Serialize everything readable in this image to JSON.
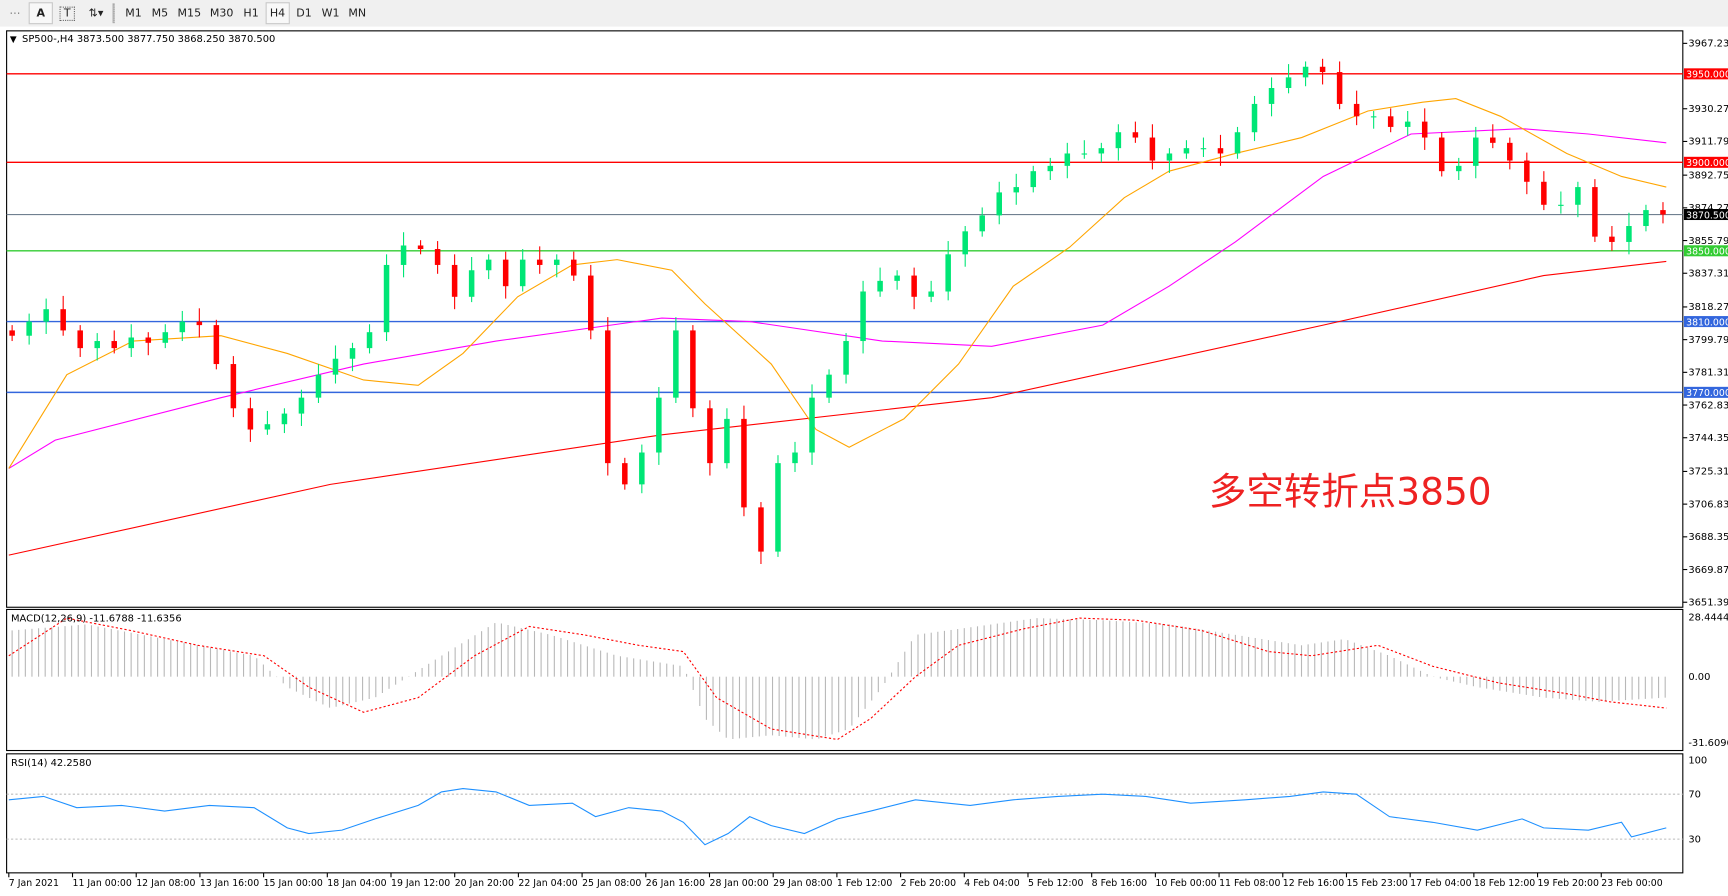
{
  "toolbar": {
    "tools": [
      "grid-icon",
      "A",
      "T",
      "arrows-icon"
    ],
    "timeframes": [
      "M1",
      "M5",
      "M15",
      "M30",
      "H1",
      "H4",
      "D1",
      "W1",
      "MN"
    ],
    "selected": "H4"
  },
  "chart": {
    "header": "SP500-,H4  3873.500 3877.750 3868.250 3870.500",
    "price_ticks": [
      "3967.230",
      "3930.270",
      "3911.790",
      "3892.750",
      "3874.270",
      "3855.790",
      "3837.310",
      "3818.270",
      "3799.790",
      "3781.310",
      "3762.830",
      "3744.350",
      "3725.310",
      "3706.830",
      "3688.350",
      "3669.870",
      "3651.390"
    ],
    "levels": [
      {
        "label": "3950.000",
        "value": 3950,
        "color": "#ff0000"
      },
      {
        "label": "3900.000",
        "value": 3900,
        "color": "#ff0000"
      },
      {
        "label": "3850.000",
        "value": 3850,
        "color": "#33cc33"
      },
      {
        "label": "3810.000",
        "value": 3810,
        "color": "#3366dd"
      },
      {
        "label": "3770.000",
        "value": 3770,
        "color": "#3366dd"
      }
    ],
    "current": {
      "label": "3870.500",
      "value": 3870.5
    },
    "annotation": "多空转折点3850",
    "colors": {
      "bull": "#00e676",
      "bear": "#ff0000",
      "ma_fast": "#ffa500",
      "ma_mid": "#ff00ff",
      "ma_slow": "#ff0000"
    },
    "time_labels": [
      "7 Jan 2021",
      "11 Jan 00:00",
      "12 Jan 08:00",
      "13 Jan 16:00",
      "15 Jan 00:00",
      "18 Jan 04:00",
      "19 Jan 12:00",
      "20 Jan 20:00",
      "22 Jan 04:00",
      "25 Jan 08:00",
      "26 Jan 16:00",
      "28 Jan 00:00",
      "29 Jan 08:00",
      "1 Feb 12:00",
      "2 Feb 20:00",
      "4 Feb 04:00",
      "5 Feb 12:00",
      "8 Feb 16:00",
      "10 Feb 00:00",
      "11 Feb 08:00",
      "12 Feb 16:00",
      "15 Feb 23:00",
      "17 Feb 04:00",
      "18 Feb 12:00",
      "19 Feb 20:00",
      "23 Feb 00:00"
    ]
  },
  "macd": {
    "label": "MACD(12,26,9) -11.6788 -11.6356",
    "ticks": [
      "28.4444",
      "0.00",
      "-31.6096"
    ]
  },
  "rsi": {
    "label": "RSI(14) 42.2580",
    "ticks": [
      "100",
      "70",
      "30",
      "0"
    ]
  },
  "chart_data": {
    "type": "candlestick",
    "close": [
      3802,
      3810,
      3817,
      3805,
      3795,
      3799,
      3795,
      3801,
      3798,
      3804,
      3810,
      3808,
      3786,
      3761,
      3749,
      3752,
      3758,
      3767,
      3780,
      3789,
      3795,
      3804,
      3842,
      3853,
      3851,
      3842,
      3824,
      3839,
      3845,
      3830,
      3845,
      3842,
      3845,
      3836,
      3805,
      3730,
      3718,
      3736,
      3767,
      3805,
      3761,
      3730,
      3755,
      3705,
      3680,
      3730,
      3736,
      3767,
      3780,
      3799,
      3827,
      3833,
      3836,
      3824,
      3827,
      3848,
      3861,
      3870,
      3883,
      3886,
      3895,
      3898,
      3905,
      3905,
      3908,
      3917,
      3914,
      3901,
      3905,
      3908,
      3908,
      3905,
      3917,
      3933,
      3942,
      3948,
      3954,
      3951,
      3933,
      3926,
      3926,
      3920,
      3923,
      3914,
      3895,
      3898,
      3914,
      3911,
      3901,
      3889,
      3876,
      3876,
      3886,
      3858,
      3855,
      3864,
      3873,
      3870.5
    ],
    "ma_fast": [
      [
        0,
        3727
      ],
      [
        0.035,
        3780
      ],
      [
        0.075,
        3799
      ],
      [
        0.128,
        3802
      ],
      [
        0.168,
        3792
      ],
      [
        0.214,
        3777
      ],
      [
        0.247,
        3774
      ],
      [
        0.274,
        3792
      ],
      [
        0.307,
        3824
      ],
      [
        0.34,
        3842
      ],
      [
        0.367,
        3845
      ],
      [
        0.4,
        3839
      ],
      [
        0.42,
        3820
      ],
      [
        0.46,
        3786
      ],
      [
        0.487,
        3749
      ],
      [
        0.507,
        3739
      ],
      [
        0.54,
        3755
      ],
      [
        0.573,
        3786
      ],
      [
        0.606,
        3830
      ],
      [
        0.64,
        3852
      ],
      [
        0.673,
        3880
      ],
      [
        0.7,
        3895
      ],
      [
        0.74,
        3905
      ],
      [
        0.78,
        3914
      ],
      [
        0.82,
        3929
      ],
      [
        0.853,
        3934
      ],
      [
        0.873,
        3936
      ],
      [
        0.9,
        3926
      ],
      [
        0.94,
        3905
      ],
      [
        0.973,
        3892
      ],
      [
        1,
        3886
      ]
    ],
    "ma_mid": [
      [
        0,
        3727
      ],
      [
        0.028,
        3743
      ],
      [
        0.128,
        3767
      ],
      [
        0.214,
        3786
      ],
      [
        0.294,
        3799
      ],
      [
        0.394,
        3812
      ],
      [
        0.447,
        3810
      ],
      [
        0.527,
        3799
      ],
      [
        0.593,
        3796
      ],
      [
        0.66,
        3808
      ],
      [
        0.7,
        3830
      ],
      [
        0.74,
        3855
      ],
      [
        0.793,
        3892
      ],
      [
        0.846,
        3916
      ],
      [
        0.913,
        3919
      ],
      [
        0.953,
        3916
      ],
      [
        1,
        3911
      ]
    ],
    "ma_slow": [
      [
        0,
        3678
      ],
      [
        0.194,
        3718
      ],
      [
        0.394,
        3746
      ],
      [
        0.593,
        3767
      ],
      [
        0.793,
        3808
      ],
      [
        0.926,
        3836
      ],
      [
        1,
        3844
      ]
    ],
    "macd_hist": [
      [
        0,
        22
      ],
      [
        0.047,
        25
      ],
      [
        0.094,
        18
      ],
      [
        0.148,
        10
      ],
      [
        0.168,
        -5
      ],
      [
        0.194,
        -15
      ],
      [
        0.221,
        -10
      ],
      [
        0.261,
        10
      ],
      [
        0.294,
        26
      ],
      [
        0.327,
        20
      ],
      [
        0.367,
        10
      ],
      [
        0.407,
        5
      ],
      [
        0.42,
        -20
      ],
      [
        0.434,
        -30
      ],
      [
        0.46,
        -28
      ],
      [
        0.487,
        -30
      ],
      [
        0.507,
        -25
      ],
      [
        0.527,
        -5
      ],
      [
        0.547,
        20
      ],
      [
        0.593,
        25
      ],
      [
        0.62,
        28
      ],
      [
        0.66,
        27
      ],
      [
        0.7,
        25
      ],
      [
        0.74,
        20
      ],
      [
        0.78,
        15
      ],
      [
        0.806,
        18
      ],
      [
        0.833,
        10
      ],
      [
        0.859,
        0
      ],
      [
        0.886,
        -5
      ],
      [
        0.926,
        -10
      ],
      [
        0.959,
        -12
      ],
      [
        1,
        -10
      ]
    ],
    "macd_signal": [
      [
        0,
        10
      ],
      [
        0.035,
        28
      ],
      [
        0.074,
        22
      ],
      [
        0.114,
        15
      ],
      [
        0.154,
        10
      ],
      [
        0.181,
        -5
      ],
      [
        0.214,
        -17
      ],
      [
        0.247,
        -10
      ],
      [
        0.281,
        10
      ],
      [
        0.314,
        24
      ],
      [
        0.347,
        20
      ],
      [
        0.38,
        15
      ],
      [
        0.407,
        12
      ],
      [
        0.427,
        -10
      ],
      [
        0.46,
        -25
      ],
      [
        0.5,
        -30
      ],
      [
        0.52,
        -20
      ],
      [
        0.547,
        0
      ],
      [
        0.573,
        15
      ],
      [
        0.613,
        23
      ],
      [
        0.646,
        28
      ],
      [
        0.68,
        27
      ],
      [
        0.72,
        22
      ],
      [
        0.76,
        12
      ],
      [
        0.786,
        10
      ],
      [
        0.826,
        15
      ],
      [
        0.859,
        5
      ],
      [
        0.899,
        -3
      ],
      [
        0.939,
        -8
      ],
      [
        0.966,
        -12
      ],
      [
        1,
        -15
      ]
    ],
    "rsi": [
      [
        0,
        65
      ],
      [
        0.021,
        68
      ],
      [
        0.041,
        58
      ],
      [
        0.068,
        60
      ],
      [
        0.094,
        55
      ],
      [
        0.121,
        60
      ],
      [
        0.148,
        58
      ],
      [
        0.168,
        40
      ],
      [
        0.181,
        35
      ],
      [
        0.201,
        38
      ],
      [
        0.221,
        48
      ],
      [
        0.247,
        60
      ],
      [
        0.261,
        72
      ],
      [
        0.274,
        75
      ],
      [
        0.294,
        72
      ],
      [
        0.314,
        60
      ],
      [
        0.34,
        62
      ],
      [
        0.354,
        50
      ],
      [
        0.374,
        58
      ],
      [
        0.394,
        55
      ],
      [
        0.407,
        45
      ],
      [
        0.42,
        25
      ],
      [
        0.434,
        35
      ],
      [
        0.447,
        50
      ],
      [
        0.46,
        42
      ],
      [
        0.48,
        35
      ],
      [
        0.5,
        48
      ],
      [
        0.52,
        55
      ],
      [
        0.547,
        65
      ],
      [
        0.58,
        60
      ],
      [
        0.606,
        65
      ],
      [
        0.633,
        68
      ],
      [
        0.66,
        70
      ],
      [
        0.686,
        68
      ],
      [
        0.713,
        62
      ],
      [
        0.746,
        65
      ],
      [
        0.773,
        68
      ],
      [
        0.793,
        72
      ],
      [
        0.813,
        70
      ],
      [
        0.833,
        50
      ],
      [
        0.859,
        45
      ],
      [
        0.886,
        38
      ],
      [
        0.913,
        48
      ],
      [
        0.926,
        40
      ],
      [
        0.953,
        38
      ],
      [
        0.973,
        45
      ],
      [
        0.979,
        32
      ],
      [
        1,
        40
      ]
    ]
  }
}
